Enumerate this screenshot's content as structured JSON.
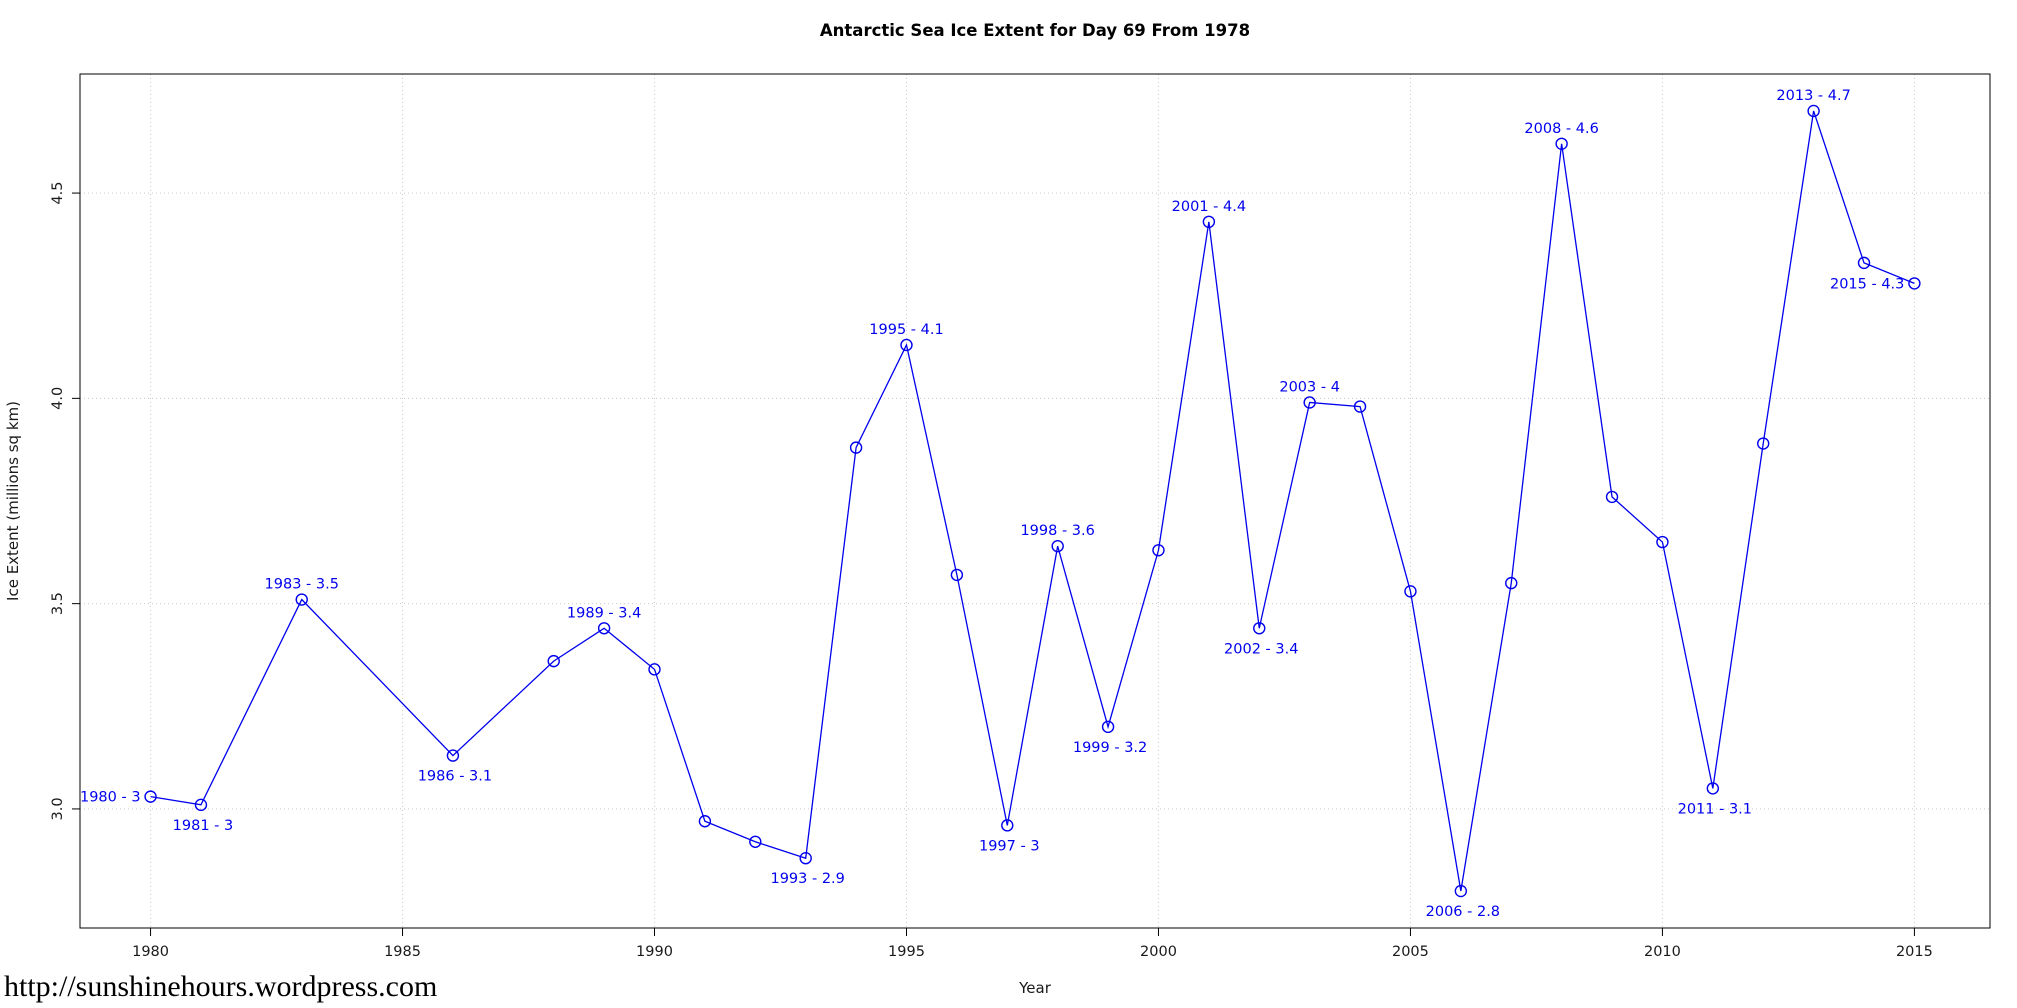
{
  "page": {
    "footer_url": "http://sunshinehours.wordpress.com"
  },
  "chart_data": {
    "type": "line",
    "title": "Antarctic Sea Ice Extent for Day 69 From 1978",
    "xlabel": "Year",
    "ylabel": "Ice Extent (millions sq km)",
    "xlim": [
      1978.6,
      2016.5
    ],
    "ylim": [
      2.71,
      4.79
    ],
    "grid": true,
    "legend": "none",
    "line_color": "#0000EE",
    "label_color": "#0000EE",
    "grid_color": "#c9c9c9",
    "axis_color": "#000000",
    "marker": "open-circle",
    "x_ticks": [
      1980,
      1985,
      1990,
      1995,
      2000,
      2005,
      2010,
      2015
    ],
    "x_tick_labels": [
      "1980",
      "1985",
      "1990",
      "1995",
      "2000",
      "2005",
      "2010",
      "2015"
    ],
    "y_ticks": [
      3.0,
      3.5,
      4.0,
      4.5
    ],
    "y_tick_labels": [
      "3.0",
      "3.5",
      "4.0",
      "4.5"
    ],
    "points": [
      {
        "year": 1980,
        "value": 3.03,
        "label": "1980 - 3",
        "label_pos": "left"
      },
      {
        "year": 1981,
        "value": 3.01,
        "label": "1981 - 3",
        "label_pos": "below"
      },
      {
        "year": 1983,
        "value": 3.51,
        "label": "1983 - 3.5",
        "label_pos": "above"
      },
      {
        "year": 1986,
        "value": 3.13,
        "label": "1986 - 3.1",
        "label_pos": "below"
      },
      {
        "year": 1988,
        "value": 3.36
      },
      {
        "year": 1989,
        "value": 3.44,
        "label": "1989 - 3.4",
        "label_pos": "above"
      },
      {
        "year": 1990,
        "value": 3.34
      },
      {
        "year": 1991,
        "value": 2.97
      },
      {
        "year": 1992,
        "value": 2.92
      },
      {
        "year": 1993,
        "value": 2.88,
        "label": "1993 - 2.9",
        "label_pos": "below"
      },
      {
        "year": 1994,
        "value": 3.88
      },
      {
        "year": 1995,
        "value": 4.13,
        "label": "1995 - 4.1",
        "label_pos": "above"
      },
      {
        "year": 1996,
        "value": 3.57
      },
      {
        "year": 1997,
        "value": 2.96,
        "label": "1997 - 3",
        "label_pos": "below"
      },
      {
        "year": 1998,
        "value": 3.64,
        "label": "1998 - 3.6",
        "label_pos": "above"
      },
      {
        "year": 1999,
        "value": 3.2,
        "label": "1999 - 3.2",
        "label_pos": "below"
      },
      {
        "year": 2000,
        "value": 3.63
      },
      {
        "year": 2001,
        "value": 4.43,
        "label": "2001 - 4.4",
        "label_pos": "above"
      },
      {
        "year": 2002,
        "value": 3.44,
        "label": "2002 - 3.4",
        "label_pos": "below"
      },
      {
        "year": 2003,
        "value": 3.99,
        "label": "2003 - 4",
        "label_pos": "above"
      },
      {
        "year": 2004,
        "value": 3.98
      },
      {
        "year": 2005,
        "value": 3.53
      },
      {
        "year": 2006,
        "value": 2.8,
        "label": "2006 - 2.8",
        "label_pos": "below"
      },
      {
        "year": 2007,
        "value": 3.55
      },
      {
        "year": 2008,
        "value": 4.62,
        "label": "2008 - 4.6",
        "label_pos": "above"
      },
      {
        "year": 2009,
        "value": 3.76
      },
      {
        "year": 2010,
        "value": 3.65
      },
      {
        "year": 2011,
        "value": 3.05,
        "label": "2011 - 3.1",
        "label_pos": "below"
      },
      {
        "year": 2012,
        "value": 3.89
      },
      {
        "year": 2013,
        "value": 4.7,
        "label": "2013 - 4.7",
        "label_pos": "above"
      },
      {
        "year": 2014,
        "value": 4.33
      },
      {
        "year": 2015,
        "value": 4.28,
        "label": "2015 - 4.3",
        "label_pos": "left"
      }
    ]
  }
}
